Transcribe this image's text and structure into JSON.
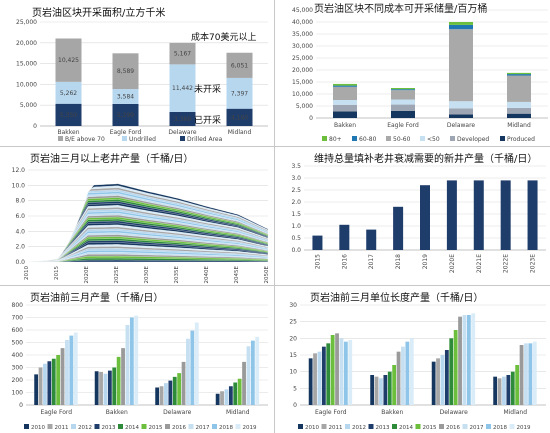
{
  "panels": {
    "p1": {
      "chart_data": {
        "type": "bar",
        "title": "页岩油区块开采面积/立方千米",
        "categories": [
          "Bakken",
          "Eagle Ford",
          "Delaware",
          "Midland"
        ],
        "ylim": [
          0,
          25000
        ],
        "yticks": [
          "0",
          "5,000",
          "10,000",
          "15,000",
          "20,000",
          "25,000"
        ],
        "series": [
          {
            "name": "Drilled Area",
            "color": "#1f3d6b",
            "values": [
              5350,
              5299,
              3369,
              4160
            ]
          },
          {
            "name": "Undrilled",
            "color": "#b7d7ef",
            "values": [
              5262,
              3584,
              11442,
              7397
            ]
          },
          {
            "name": "B/E above 70",
            "color": "#a6a6a6",
            "values": [
              10425,
              8589,
              5167,
              6051
            ]
          }
        ],
        "value_labels": [
          [
            "5,350",
            "5,262",
            "10,425"
          ],
          [
            "5,299",
            "3,584",
            "8,589"
          ],
          [
            "3,369",
            "11,442",
            "5,167"
          ],
          [
            "4,160",
            "7,397",
            "6,051"
          ]
        ],
        "annotations": [
          {
            "text": "成本70美元以上",
            "color": "#7f7f7f"
          },
          {
            "text": "未开采",
            "color": "#2aa6d6"
          },
          {
            "text": "已开采",
            "color": "#111111"
          }
        ]
      }
    },
    "p2": {
      "chart_data": {
        "type": "bar",
        "title": "页岩油区块不同成本可开采储量/百万桶",
        "categories": [
          "Bakken",
          "Eagle Ford",
          "Delaware",
          "Midland"
        ],
        "ylim": [
          0,
          45000
        ],
        "yticks": [
          "0",
          "5,000",
          "10,000",
          "15,000",
          "20,000",
          "25,000",
          "30,000",
          "35,000",
          "40,000",
          "45,000"
        ],
        "legend": [
          "80+",
          "60-80",
          "50-60",
          "<50",
          "Developed",
          "Produced"
        ],
        "series": [
          {
            "name": "Produced",
            "color": "#15365e",
            "values": [
              2700,
              3000,
              1500,
              1800
            ]
          },
          {
            "name": "Developed",
            "color": "#9fa6b3",
            "values": [
              2800,
              2600,
              2500,
              2400
            ]
          },
          {
            "name": "<50",
            "color": "#c6e0f2",
            "values": [
              2000,
              2100,
              3000,
              2500
            ]
          },
          {
            "name": "50-60",
            "color": "#a9a9a9",
            "values": [
              5500,
              3900,
              30000,
              11000
            ]
          },
          {
            "name": "60-80",
            "color": "#1f78b4",
            "values": [
              500,
              400,
              1800,
              600
            ]
          },
          {
            "name": "80+",
            "color": "#6cbf3c",
            "values": [
              700,
              500,
              1200,
              500
            ]
          }
        ]
      }
    },
    "p3": {
      "chart_data": {
        "type": "area",
        "title": "页岩油三月以上老井产量（千桶/日）",
        "ylim": [
          0,
          12
        ],
        "yticks": [
          "0.0",
          "2.0",
          "4.0",
          "6.0",
          "8.0",
          "10.0",
          "12.0"
        ],
        "x": [
          "2010",
          "2015",
          "2020E",
          "2025E",
          "2030E",
          "2035E",
          "2040E",
          "2045E",
          "2050E"
        ],
        "total_envelope": [
          0.1,
          1.0,
          10.0,
          10.2,
          9.2,
          8.3,
          7.2,
          6.2,
          4.3
        ],
        "series_count": 40
      }
    },
    "p4": {
      "chart_data": {
        "type": "bar",
        "title": "维持总量填补老井衰减需要的新井产量（千桶/日）",
        "categories": [
          "2015",
          "2016",
          "2017",
          "2018",
          "2019",
          "2020E",
          "2021E",
          "2022E",
          "2023E"
        ],
        "values": [
          0.6,
          1.05,
          0.85,
          1.8,
          2.7,
          2.9,
          2.9,
          2.9,
          2.9
        ],
        "ylim": [
          0,
          3.5
        ],
        "yticks": [
          "0.0",
          "0.5",
          "1.0",
          "1.5",
          "2.0",
          "2.5",
          "3.0",
          "3.5"
        ],
        "color": "#1f3d6b"
      }
    },
    "p5": {
      "chart_data": {
        "type": "bar",
        "title": "页岩油前三月产量（千桶/日）",
        "categories": [
          "Eagle Ford",
          "Bakken",
          "Delaware",
          "Midland"
        ],
        "ylim": [
          0,
          800
        ],
        "yticks": [
          "0",
          "100",
          "200",
          "300",
          "400",
          "500",
          "600",
          "700",
          "800"
        ],
        "legend": [
          "2010",
          "2011",
          "2012",
          "2013",
          "2014",
          "2015",
          "2016",
          "2017",
          "2018",
          "2019"
        ],
        "series": [
          {
            "name": "2010",
            "color": "#15365e",
            "values": [
              245,
              270,
              140,
              90
            ]
          },
          {
            "name": "2011",
            "color": "#a6a6a6",
            "values": [
              300,
              265,
              150,
              110
            ]
          },
          {
            "name": "2012",
            "color": "#b7d7ef",
            "values": [
              330,
              250,
              175,
              125
            ]
          },
          {
            "name": "2013",
            "color": "#1f3d6b",
            "values": [
              350,
              275,
              195,
              150
            ]
          },
          {
            "name": "2014",
            "color": "#2e8b3a",
            "values": [
              370,
              300,
              225,
              180
            ]
          },
          {
            "name": "2015",
            "color": "#6cbf3c",
            "values": [
              400,
              385,
              255,
              210
            ]
          },
          {
            "name": "2016",
            "color": "#9a9a9a",
            "values": [
              455,
              455,
              345,
              345
            ]
          },
          {
            "name": "2017",
            "color": "#c6e0f2",
            "values": [
              520,
              640,
              530,
              470
            ]
          },
          {
            "name": "2018",
            "color": "#8ec5e8",
            "values": [
              555,
              700,
              595,
              515
            ]
          },
          {
            "name": "2019",
            "color": "#d9ecf8",
            "values": [
              580,
              715,
              660,
              545
            ]
          }
        ]
      }
    },
    "p6": {
      "chart_data": {
        "type": "bar",
        "title": "页岩油前三月单位长度产量（千桶/日）",
        "categories": [
          "Eagle Ford",
          "Bakken",
          "Delaware",
          "Midland"
        ],
        "ylim": [
          0,
          30
        ],
        "yticks": [
          "0",
          "5",
          "10",
          "15",
          "20",
          "25",
          "30"
        ],
        "legend": [
          "2010",
          "2011",
          "2012",
          "2013",
          "2014",
          "2015",
          "2016",
          "2017",
          "2018",
          "2019"
        ],
        "series": [
          {
            "name": "2010",
            "color": "#15365e",
            "values": [
              14,
              9,
              13,
              8.5
            ]
          },
          {
            "name": "2011",
            "color": "#a6a6a6",
            "values": [
              15.5,
              8.5,
              14,
              8
            ]
          },
          {
            "name": "2012",
            "color": "#b7d7ef",
            "values": [
              16,
              8,
              15,
              8.5
            ]
          },
          {
            "name": "2013",
            "color": "#1f3d6b",
            "values": [
              17.5,
              9,
              16.5,
              9
            ]
          },
          {
            "name": "2014",
            "color": "#2e8b3a",
            "values": [
              18.5,
              10,
              20,
              10
            ]
          },
          {
            "name": "2015",
            "color": "#6cbf3c",
            "values": [
              21,
              12,
              22.5,
              12
            ]
          },
          {
            "name": "2016",
            "color": "#9a9a9a",
            "values": [
              21.5,
              16,
              26.5,
              18
            ]
          },
          {
            "name": "2017",
            "color": "#c6e0f2",
            "values": [
              20,
              17.5,
              27,
              18.5
            ]
          },
          {
            "name": "2018",
            "color": "#8ec5e8",
            "values": [
              19,
              19,
              27,
              18.5
            ]
          },
          {
            "name": "2019",
            "color": "#d9ecf8",
            "values": [
              19.5,
              20,
              27.5,
              19
            ]
          }
        ]
      }
    }
  }
}
